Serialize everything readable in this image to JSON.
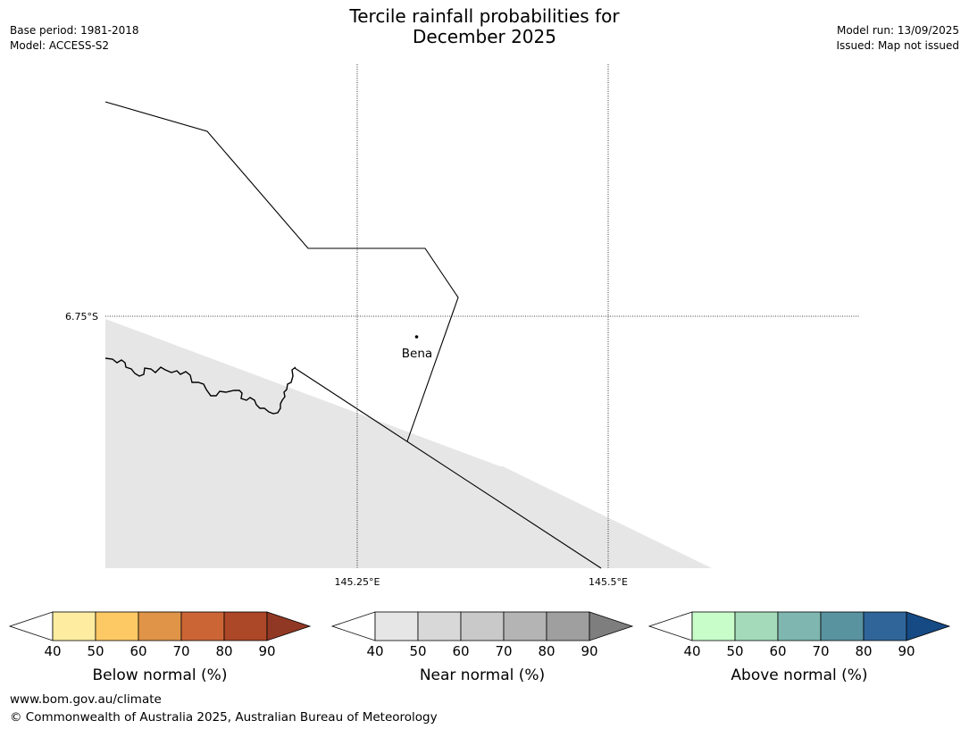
{
  "title": {
    "line1": "Tercile rainfall probabilities for",
    "line2": "December 2025"
  },
  "meta_left": {
    "base_period": "Base period: 1981-2018",
    "model": "Model: ACCESS-S2"
  },
  "meta_right": {
    "model_run": "Model run: 13/09/2025",
    "issued": "Issued: Map not issued"
  },
  "map": {
    "place_label": "Bena",
    "lat_label": "6.75°S",
    "lon_labels": [
      "145.25°E",
      "145.5°E"
    ],
    "shading_color": "#e6e6e6"
  },
  "legends": [
    {
      "title": "Below normal (%)",
      "ticks": [
        "40",
        "50",
        "60",
        "70",
        "80",
        "90"
      ],
      "colors": [
        "#ffffff",
        "#feeda0",
        "#fdc965",
        "#e09448",
        "#cc6535",
        "#ac4728",
        "#913824"
      ]
    },
    {
      "title": "Near normal (%)",
      "ticks": [
        "40",
        "50",
        "60",
        "70",
        "80",
        "90"
      ],
      "colors": [
        "#ffffff",
        "#e6e6e6",
        "#d8d8d8",
        "#c9c9c9",
        "#b4b4b4",
        "#9f9f9f",
        "#7e7e7e"
      ]
    },
    {
      "title": "Above normal (%)",
      "ticks": [
        "40",
        "50",
        "60",
        "70",
        "80",
        "90"
      ],
      "colors": [
        "#ffffff",
        "#c8fdca",
        "#a4dab9",
        "#7fb7b0",
        "#5a93a0",
        "#30659a",
        "#164a84"
      ]
    }
  ],
  "footer": {
    "url": "www.bom.gov.au/climate",
    "copyright": "© Commonwealth of Australia 2025, Australian Bureau of Meteorology"
  }
}
